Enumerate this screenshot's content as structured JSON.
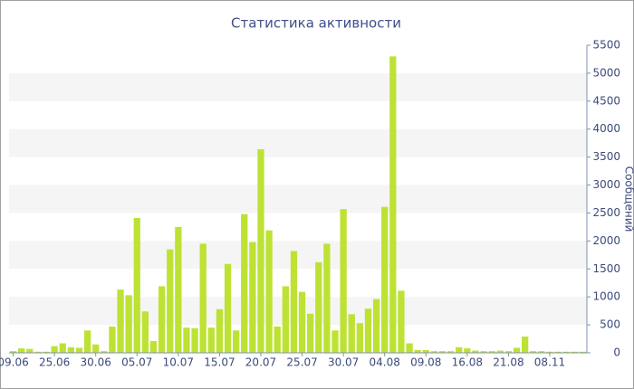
{
  "chart_data": {
    "type": "bar",
    "title": "Статистика активности",
    "y_label": "Сообщений",
    "categories": [
      "09.06",
      null,
      null,
      null,
      null,
      "25.06",
      null,
      null,
      null,
      null,
      "30.06",
      null,
      null,
      null,
      null,
      "05.07",
      null,
      null,
      null,
      null,
      "10.07",
      null,
      null,
      null,
      null,
      "15.07",
      null,
      null,
      null,
      null,
      "20.07",
      null,
      null,
      null,
      null,
      "25.07",
      null,
      null,
      null,
      null,
      "30.07",
      null,
      null,
      null,
      null,
      "04.08",
      null,
      null,
      null,
      null,
      "09.08",
      null,
      null,
      null,
      null,
      "16.08",
      null,
      null,
      null,
      null,
      "21.08",
      null,
      null,
      null,
      null,
      "08.11",
      null,
      null,
      null,
      null
    ],
    "values": [
      30,
      80,
      70,
      20,
      20,
      120,
      170,
      100,
      90,
      400,
      150,
      30,
      470,
      1130,
      1030,
      2410,
      740,
      210,
      1190,
      1850,
      2250,
      450,
      440,
      1950,
      450,
      780,
      1590,
      400,
      2480,
      1980,
      3640,
      2190,
      470,
      1190,
      1820,
      1090,
      700,
      1620,
      1950,
      400,
      2570,
      690,
      530,
      790,
      960,
      2610,
      5300,
      1110,
      170,
      50,
      50,
      30,
      30,
      30,
      100,
      80,
      40,
      30,
      30,
      40,
      30,
      90,
      290,
      30,
      30,
      20,
      20,
      20,
      20,
      20
    ],
    "color": "#bde234",
    "ylim": [
      0,
      5500
    ],
    "yticks": [
      0,
      500,
      1000,
      1500,
      2000,
      2500,
      3000,
      3500,
      4000,
      4500,
      5000,
      5500
    ],
    "grid": true
  }
}
